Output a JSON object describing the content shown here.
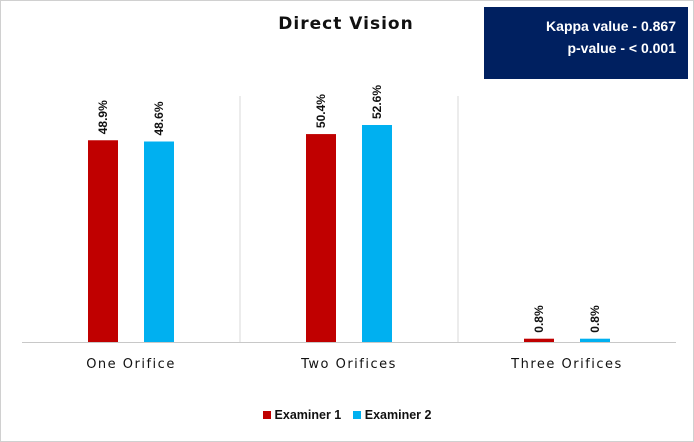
{
  "chart_data": {
    "type": "bar",
    "title": "Direct Vision",
    "categories": [
      "One Orifice",
      "Two Orifices",
      "Three Orifices"
    ],
    "series": [
      {
        "name": "Examiner 1",
        "values": [
          48.9,
          50.4,
          0.8
        ],
        "labels": [
          "48.9%",
          "50.4%",
          "0.8%"
        ],
        "color": "#C00000"
      },
      {
        "name": "Examiner 2",
        "values": [
          48.6,
          52.6,
          0.8
        ],
        "labels": [
          "48.6%",
          "52.6%",
          "0.8%"
        ],
        "color": "#00B0F0"
      }
    ],
    "xlabel": "",
    "ylabel": "",
    "ylim": [
      0,
      60
    ],
    "grid": false,
    "legend": "bottom",
    "value_suffix": "%"
  },
  "stats_box": {
    "kappa": "Kappa value - 0.867",
    "p_value": "p-value - < 0.001",
    "background": "#002060"
  },
  "colors": {
    "separator": "#d9d9d9",
    "axis": "#c8c8c8"
  }
}
